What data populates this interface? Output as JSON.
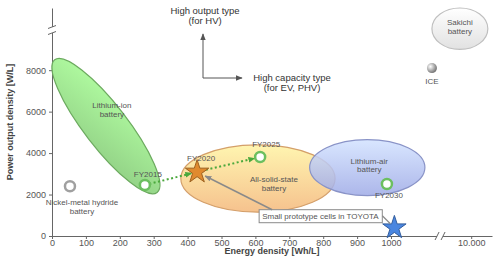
{
  "chart_data": {
    "type": "scatter",
    "x_label": "Energy density [Wh/L]",
    "y_label": "Power output density [W/L]",
    "xlim": [
      0,
      14000
    ],
    "ylim": [
      0,
      11000
    ],
    "xticks": [
      0,
      100,
      200,
      300,
      400,
      500,
      600,
      700,
      800,
      900,
      1000,
      {
        "value": 10000,
        "label": "10.000"
      }
    ],
    "yticks": [
      0,
      2000,
      4000,
      6000,
      8000
    ],
    "annotations": [
      "High output type\n(for HV)",
      "High capacity type\n(for EV, PHV)"
    ],
    "series": [
      {
        "name": "Lithium-ion\nbattery",
        "type": "region",
        "marker": "tilted-ellipse",
        "color": "#7cc46e",
        "x": [
          8,
          310
        ],
        "y": [
          2100,
          8500
        ]
      },
      {
        "name": "All-solid-state\nbattery",
        "type": "region",
        "marker": "ellipse",
        "color": "#f4b77a",
        "x": [
          380,
          835
        ],
        "y": [
          1150,
          4400
        ]
      },
      {
        "name": "Lithium-air\nbattery",
        "type": "region",
        "marker": "ellipse",
        "color": "#9eaae6",
        "x": [
          760,
          1100
        ],
        "y": [
          1950,
          4650
        ]
      },
      {
        "name": "Sakichi\nbattery",
        "type": "region",
        "marker": "ellipse",
        "color": "#dcdcdc",
        "x": [
          2450,
          13200
        ],
        "y": [
          9000,
          11000
        ]
      },
      {
        "type": "line",
        "color": "#4aa83c",
        "line_style": "dotted",
        "marker": "arrow",
        "x": [
          274,
          428,
          614
        ],
        "y": [
          2460,
          3090,
          3810
        ]
      },
      {
        "name": "Nickel-metal hydride\nbattery",
        "type": "scatter",
        "marker": "ring",
        "color": "#a0a0a0",
        "x": [
          53
        ],
        "y": [
          2400
        ]
      },
      {
        "name": "ICE",
        "type": "scatter",
        "marker": "sphere",
        "color": "#777777",
        "x": [
          2450
        ],
        "y": [
          8100
        ]
      },
      {
        "name": "FY2015",
        "type": "scatter",
        "marker": "ring",
        "color": "#6cbf5f",
        "x": [
          274
        ],
        "y": [
          2460
        ]
      },
      {
        "name": "FY2020",
        "type": "scatter",
        "marker": "star",
        "color": "#e08a2e",
        "x": [
          428
        ],
        "y": [
          3090
        ]
      },
      {
        "name": "FY2025",
        "type": "scatter",
        "marker": "ring",
        "color": "#6cbf5f",
        "x": [
          614
        ],
        "y": [
          3810
        ]
      },
      {
        "name": "FY2030",
        "type": "scatter",
        "marker": "ring",
        "color": "#6cbf5f",
        "x": [
          988
        ],
        "y": [
          2510
        ]
      },
      {
        "name": "Small prototype cells in TOYOTA",
        "type": "scatter",
        "marker": "star",
        "color": "#4a86e0",
        "x": [
          1010
        ],
        "y": [
          400
        ]
      }
    ]
  }
}
